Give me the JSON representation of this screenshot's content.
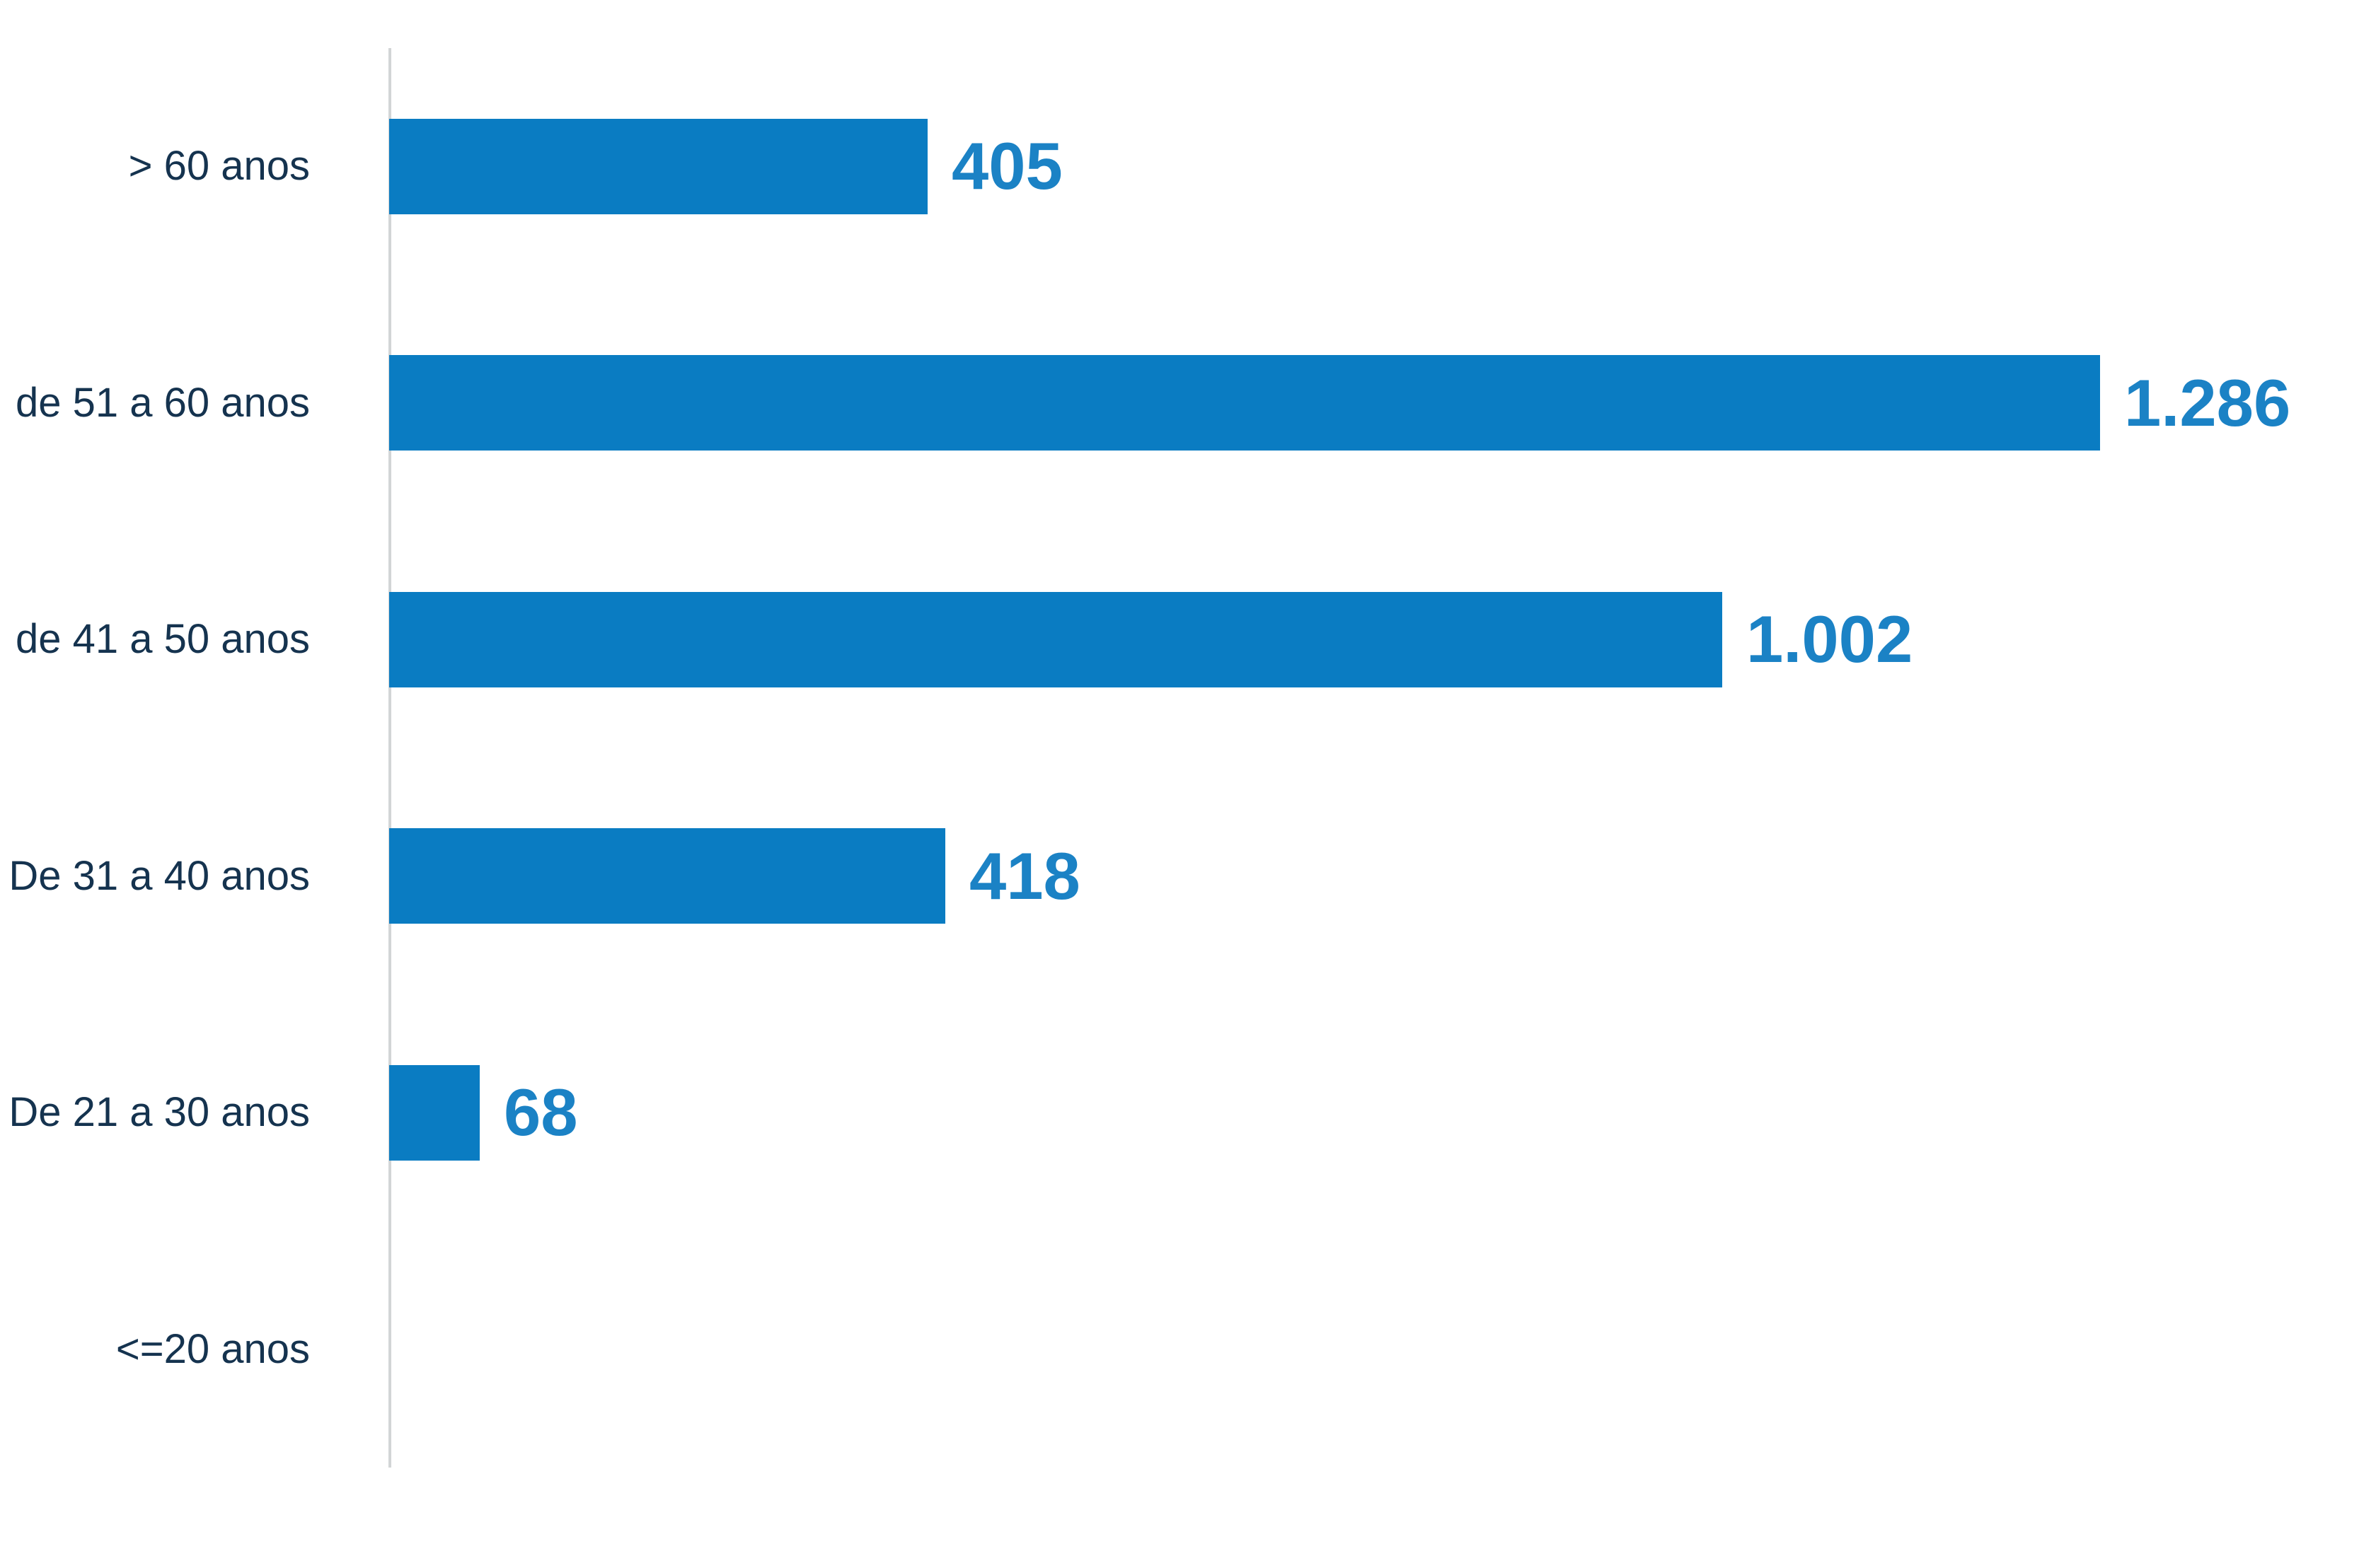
{
  "chart_data": {
    "type": "bar",
    "orientation": "horizontal",
    "title": "",
    "xlabel": "",
    "ylabel": "",
    "grid": false,
    "legend": false,
    "categories": [
      "> 60 anos",
      "de 51 a 60 anos",
      "de 41 a 50 anos",
      "De 31 a 40 anos",
      "De 21 a 30 anos",
      "<=20 anos"
    ],
    "values": [
      405,
      1286,
      1002,
      418,
      68,
      0
    ],
    "value_labels": [
      "405",
      "1.286",
      "1.002",
      "418",
      "68",
      ""
    ],
    "xlim": [
      0,
      1286
    ],
    "colors": {
      "bar": "#0a7cc2",
      "value_label": "#1b82c5",
      "category_label": "#15334f",
      "axis_line": "#d2d5d6",
      "background": "#ffffff"
    }
  }
}
